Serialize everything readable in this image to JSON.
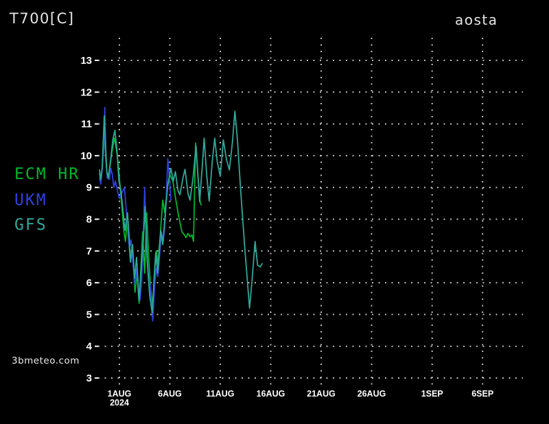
{
  "header": {
    "title": "T700[C]",
    "location": "aosta"
  },
  "watermark": {
    "text": "3bmeteo.com"
  },
  "legend": {
    "items": [
      {
        "label": "ECM HR",
        "color": "#00b82c"
      },
      {
        "label": "UKM",
        "color": "#2e41e0"
      },
      {
        "label": "GFS",
        "color": "#2fa89a"
      }
    ]
  },
  "chart_data": {
    "type": "line",
    "title": "T700[C]",
    "location": "aosta",
    "ylabel": "",
    "xlabel": "",
    "ylim": [
      3,
      13
    ],
    "grid": true,
    "legend_position": "left",
    "x_unit": "days_from_1AUG_2024",
    "yticks": [
      3,
      4,
      5,
      6,
      7,
      8,
      9,
      10,
      11,
      12,
      13
    ],
    "xticks": [
      {
        "label": "1AUG",
        "sublabel": "2024",
        "day": 0
      },
      {
        "label": "6AUG",
        "day": 5
      },
      {
        "label": "11AUG",
        "day": 10
      },
      {
        "label": "16AUG",
        "day": 15
      },
      {
        "label": "21AUG",
        "day": 20
      },
      {
        "label": "26AUG",
        "day": 25
      },
      {
        "label": "1SEP",
        "day": 31
      },
      {
        "label": "6SEP",
        "day": 36
      }
    ],
    "series": [
      {
        "name": "ECM HR",
        "color": "#00b82c",
        "points": [
          [
            -1.97,
            9.45
          ],
          [
            -1.85,
            9.2
          ],
          [
            -1.7,
            9.6
          ],
          [
            -1.5,
            10.9
          ],
          [
            -1.35,
            9.9
          ],
          [
            -1.2,
            9.3
          ],
          [
            -1.0,
            9.5
          ],
          [
            -0.75,
            10.1
          ],
          [
            -0.5,
            10.55
          ],
          [
            -0.3,
            10.2
          ],
          [
            -0.1,
            9.7
          ],
          [
            0.1,
            8.9
          ],
          [
            0.25,
            8.37
          ],
          [
            0.45,
            7.6
          ],
          [
            0.6,
            7.3
          ],
          [
            0.75,
            7.9
          ],
          [
            0.95,
            7.2
          ],
          [
            1.1,
            6.65
          ],
          [
            1.25,
            7.1
          ],
          [
            1.45,
            6.2
          ],
          [
            1.55,
            5.7
          ],
          [
            1.7,
            6.3
          ],
          [
            1.85,
            5.8
          ],
          [
            1.95,
            5.35
          ],
          [
            2.15,
            6.6
          ],
          [
            2.3,
            7.6
          ],
          [
            2.5,
            6.3
          ],
          [
            2.7,
            8.2
          ],
          [
            2.9,
            6.8
          ],
          [
            3.1,
            5.8
          ],
          [
            3.3,
            5.2
          ],
          [
            3.5,
            6.3
          ],
          [
            3.65,
            7.0
          ],
          [
            3.8,
            6.6
          ],
          [
            4.0,
            7.3
          ],
          [
            4.3,
            8.6
          ],
          [
            4.5,
            8.2
          ],
          [
            4.75,
            9.0
          ],
          [
            5.0,
            9.4
          ],
          [
            5.3,
            9.2
          ],
          [
            5.6,
            8.6
          ],
          [
            5.9,
            8.05
          ],
          [
            6.2,
            7.6
          ],
          [
            6.45,
            7.5
          ],
          [
            6.6,
            7.42
          ],
          [
            6.8,
            7.55
          ],
          [
            7.0,
            7.45
          ],
          [
            7.2,
            7.5
          ],
          [
            7.35,
            7.3
          ],
          [
            7.55,
            10.4
          ],
          [
            7.8,
            9.3
          ],
          [
            8.0,
            8.55
          ],
          [
            8.1,
            8.45
          ]
        ]
      },
      {
        "name": "UKM",
        "color": "#2e41e0",
        "points": [
          [
            -1.97,
            9.3
          ],
          [
            -1.85,
            9.1
          ],
          [
            -1.7,
            9.6
          ],
          [
            -1.55,
            10.2
          ],
          [
            -1.45,
            11.52
          ],
          [
            -1.35,
            10.1
          ],
          [
            -1.2,
            9.3
          ],
          [
            -1.0,
            9.25
          ],
          [
            -0.85,
            9.6
          ],
          [
            -0.7,
            9.4
          ],
          [
            -0.55,
            9.0
          ],
          [
            -0.4,
            9.2
          ],
          [
            -0.2,
            8.9
          ],
          [
            0.0,
            8.65
          ],
          [
            0.2,
            8.8
          ],
          [
            0.5,
            9.0
          ],
          [
            0.7,
            8.2
          ],
          [
            1.0,
            7.1
          ],
          [
            1.15,
            7.35
          ],
          [
            1.35,
            6.6
          ],
          [
            1.55,
            5.95
          ],
          [
            1.7,
            6.45
          ],
          [
            1.9,
            5.75
          ],
          [
            2.05,
            5.45
          ],
          [
            2.2,
            6.0
          ],
          [
            2.35,
            7.2
          ],
          [
            2.5,
            9.0
          ],
          [
            2.65,
            7.5
          ],
          [
            2.85,
            6.3
          ],
          [
            3.05,
            5.9
          ],
          [
            3.3,
            4.8
          ],
          [
            3.5,
            5.9
          ],
          [
            3.65,
            6.45
          ],
          [
            3.8,
            6.2
          ],
          [
            4.0,
            6.9
          ],
          [
            4.15,
            7.6
          ],
          [
            4.35,
            7.3
          ],
          [
            4.55,
            8.0
          ],
          [
            4.8,
            9.9
          ],
          [
            4.95,
            9.3
          ],
          [
            5.1,
            8.6
          ]
        ]
      },
      {
        "name": "GFS",
        "color": "#2fa89a",
        "points": [
          [
            -1.97,
            9.55
          ],
          [
            -1.85,
            9.25
          ],
          [
            -1.7,
            9.65
          ],
          [
            -1.5,
            11.25
          ],
          [
            -1.38,
            10.4
          ],
          [
            -1.25,
            9.5
          ],
          [
            -1.1,
            9.3
          ],
          [
            -0.9,
            9.8
          ],
          [
            -0.65,
            10.5
          ],
          [
            -0.45,
            10.8
          ],
          [
            -0.25,
            10.2
          ],
          [
            -0.05,
            9.2
          ],
          [
            0.15,
            8.9
          ],
          [
            0.35,
            8.3
          ],
          [
            0.55,
            7.65
          ],
          [
            0.8,
            8.2
          ],
          [
            1.0,
            7.3
          ],
          [
            1.1,
            6.65
          ],
          [
            1.3,
            7.2
          ],
          [
            1.5,
            6.15
          ],
          [
            1.7,
            6.8
          ],
          [
            1.95,
            5.45
          ],
          [
            2.15,
            6.4
          ],
          [
            2.35,
            7.2
          ],
          [
            2.55,
            8.4
          ],
          [
            2.75,
            6.7
          ],
          [
            3.0,
            5.6
          ],
          [
            3.25,
            5.05
          ],
          [
            3.45,
            6.2
          ],
          [
            3.6,
            6.95
          ],
          [
            3.8,
            6.3
          ],
          [
            4.1,
            7.65
          ],
          [
            4.3,
            7.2
          ],
          [
            4.6,
            8.4
          ],
          [
            4.8,
            9.1
          ],
          [
            5.1,
            9.6
          ],
          [
            5.35,
            9.2
          ],
          [
            5.55,
            9.5
          ],
          [
            5.8,
            8.9
          ],
          [
            6.0,
            8.77
          ],
          [
            6.3,
            9.3
          ],
          [
            6.5,
            9.57
          ],
          [
            6.8,
            8.8
          ],
          [
            7.0,
            8.6
          ],
          [
            7.3,
            9.3
          ],
          [
            7.6,
            10.3
          ],
          [
            7.95,
            8.55
          ],
          [
            8.2,
            9.6
          ],
          [
            8.4,
            10.55
          ],
          [
            8.65,
            9.4
          ],
          [
            8.9,
            8.57
          ],
          [
            9.2,
            9.8
          ],
          [
            9.45,
            10.55
          ],
          [
            9.7,
            9.8
          ],
          [
            10.0,
            9.35
          ],
          [
            10.3,
            10.5
          ],
          [
            10.6,
            9.9
          ],
          [
            10.9,
            9.55
          ],
          [
            11.2,
            10.4
          ],
          [
            11.45,
            11.4
          ],
          [
            11.7,
            10.5
          ],
          [
            12.0,
            9.0
          ],
          [
            12.4,
            7.2
          ],
          [
            12.9,
            5.2
          ],
          [
            13.1,
            5.9
          ],
          [
            13.45,
            7.3
          ],
          [
            13.7,
            6.55
          ],
          [
            13.95,
            6.5
          ],
          [
            14.15,
            6.6
          ]
        ]
      }
    ]
  }
}
